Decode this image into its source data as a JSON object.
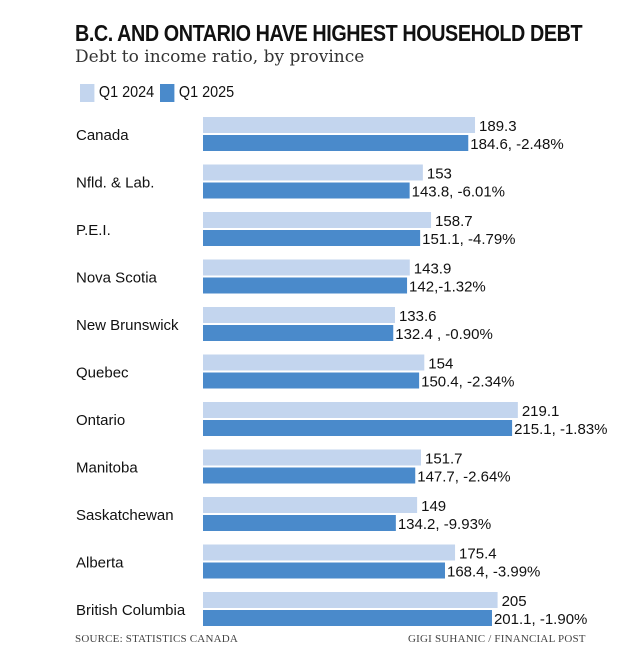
{
  "chart_data": {
    "type": "bar",
    "orientation": "horizontal",
    "title": "B.C. AND ONTARIO HAVE HIGHEST HOUSEHOLD DEBT",
    "subtitle": "Debt to income ratio, by province",
    "categories": [
      "Canada",
      "Nfld. & Lab.",
      "P.E.I.",
      "Nova Scotia",
      "New Brunswick",
      "Quebec",
      "Ontario",
      "Manitoba",
      "Saskatchewan",
      "Alberta",
      "British Columbia"
    ],
    "series": [
      {
        "name": "Q1 2024",
        "color": "#c3d5ee",
        "values": [
          189.3,
          153,
          158.7,
          143.9,
          133.6,
          154,
          219.1,
          151.7,
          149,
          175.4,
          205
        ],
        "labels": [
          "189.3",
          "153",
          "158.7",
          "143.9",
          "133.6",
          "154",
          "219.1",
          "151.7",
          "149",
          "175.4",
          "205"
        ]
      },
      {
        "name": "Q1 2025",
        "color": "#4a8acb",
        "values": [
          184.6,
          143.8,
          151.1,
          142,
          132.4,
          150.4,
          215.1,
          147.7,
          134.2,
          168.4,
          201.1
        ],
        "labels": [
          "184.6, -2.48%",
          "143.8, -6.01%",
          "151.1, -4.79%",
          "142,-1.32%",
          "132.4 , -0.90%",
          "150.4, -2.34%",
          "215.1, -1.83%",
          "147.7, -2.64%",
          "134.2, -9.93%",
          "168.4, -3.99%",
          "201.1, -1.90%"
        ]
      }
    ],
    "xlim": [
      0,
      230
    ],
    "grid": false,
    "legend_position": "top-left"
  },
  "footer": {
    "source": "SOURCE: STATISTICS CANADA",
    "credit": "GIGI SUHANIC / FINANCIAL POST"
  }
}
